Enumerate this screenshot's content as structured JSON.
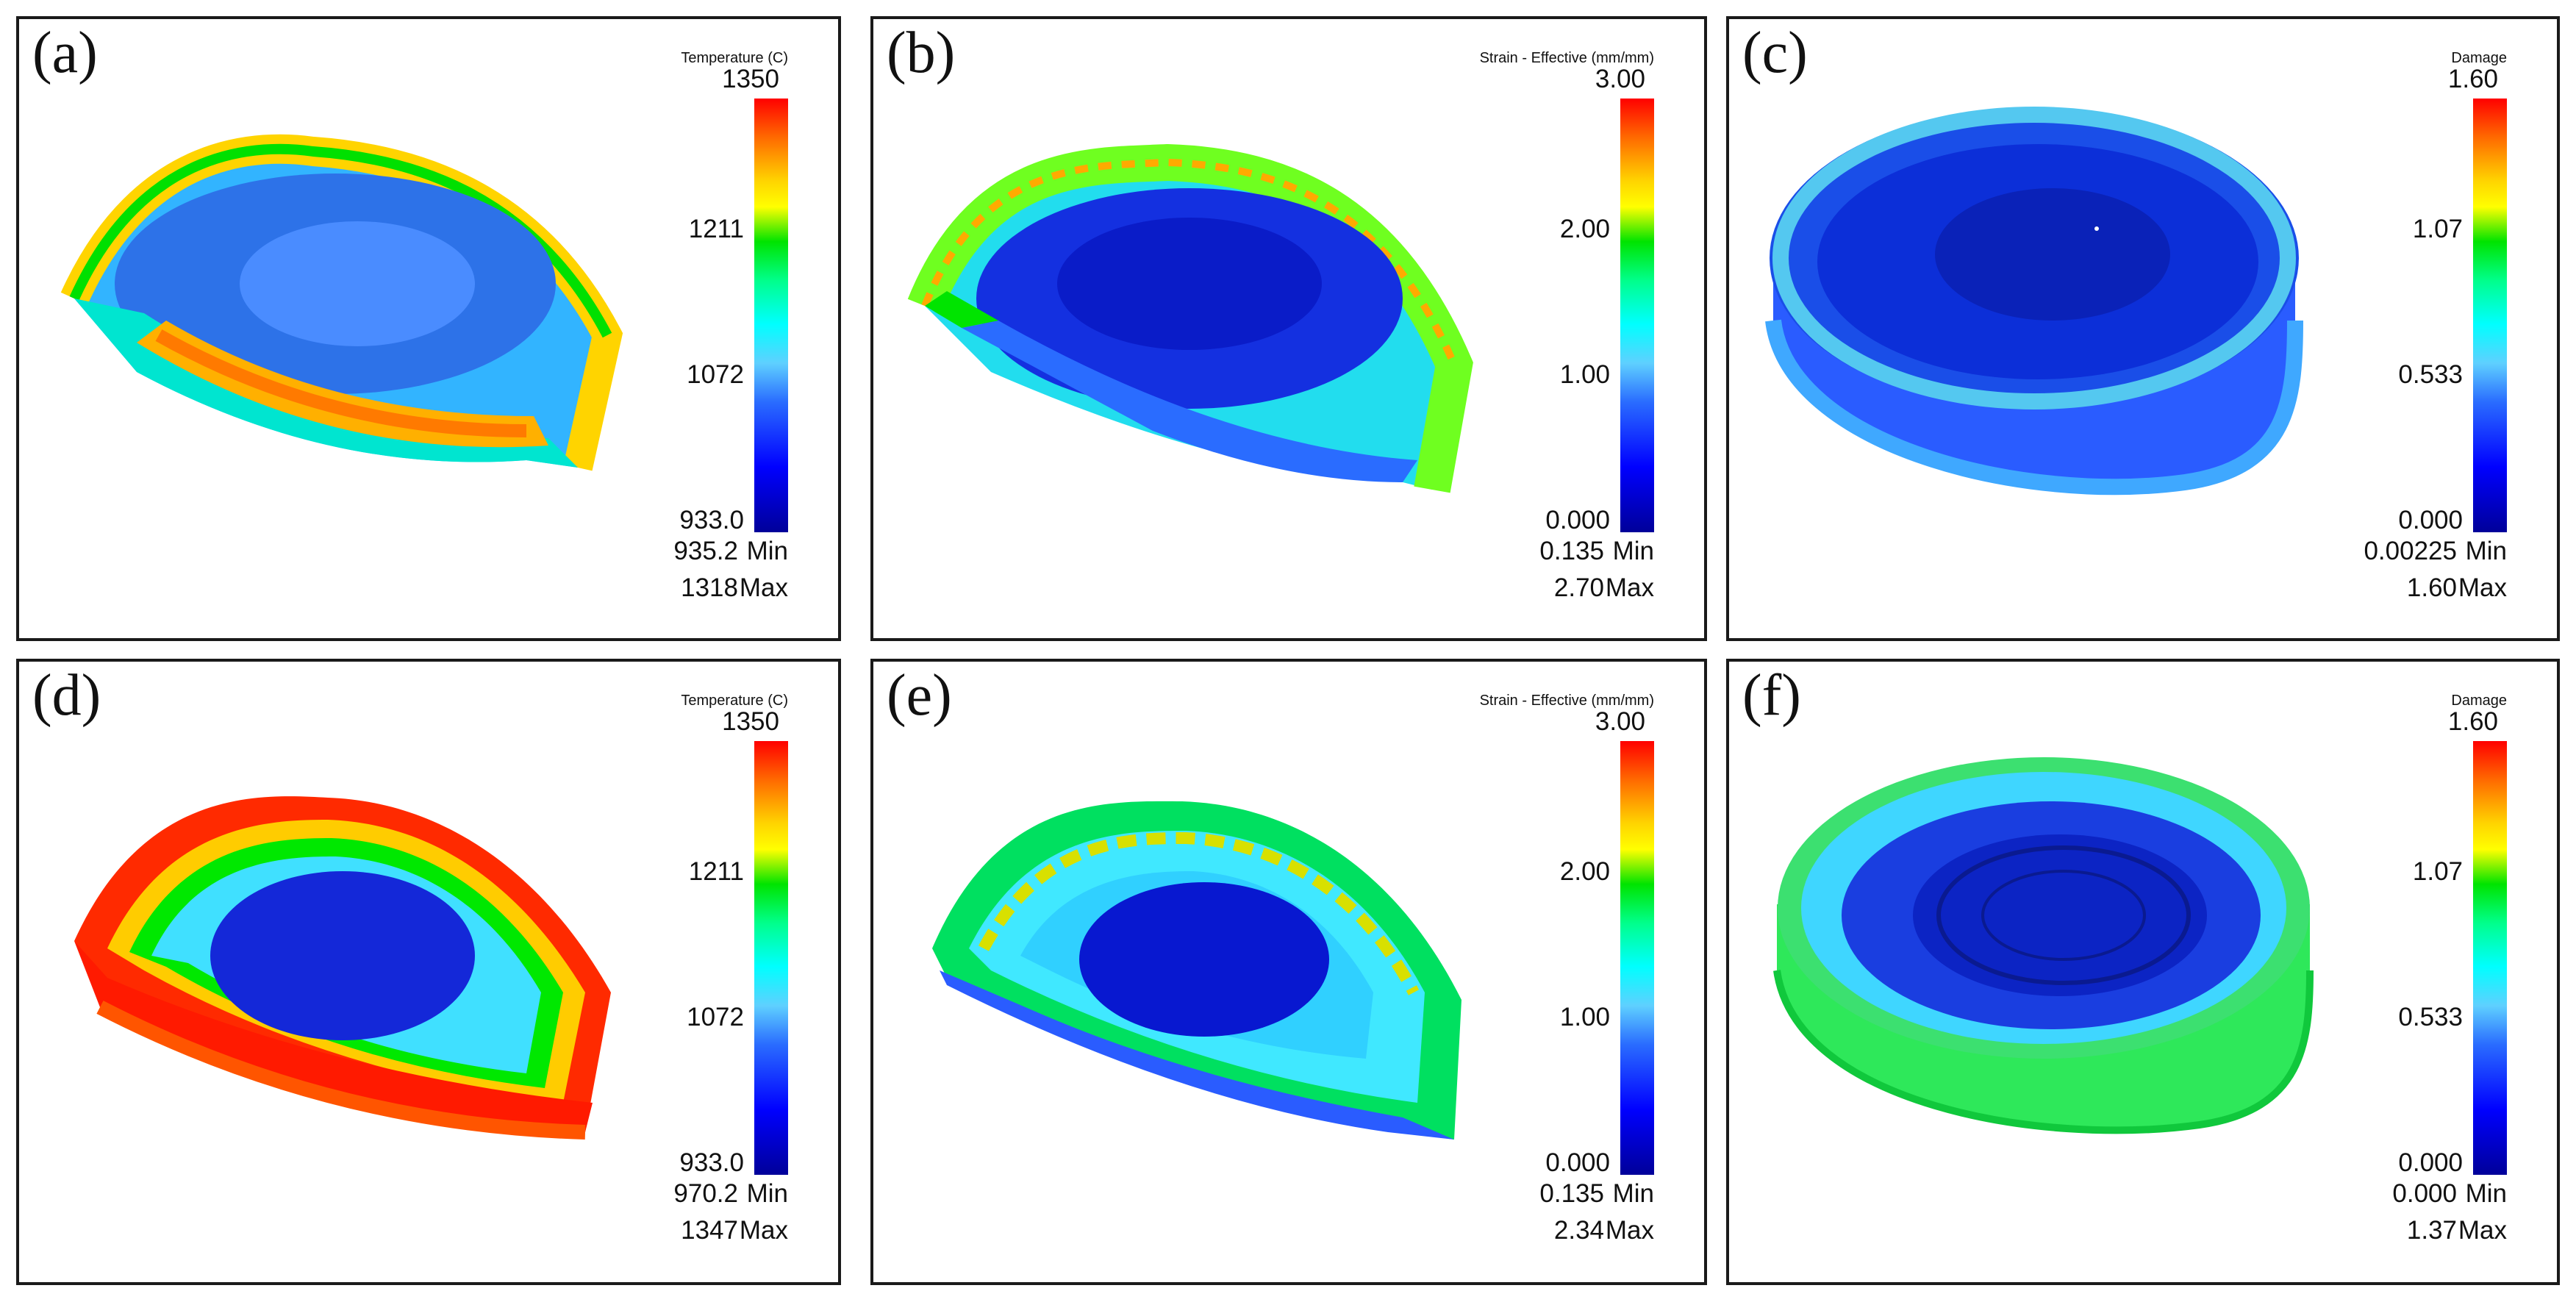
{
  "colors": {
    "frame": "#1a1a1a",
    "colormap": [
      "#000099",
      "#0000ff",
      "#2a6cff",
      "#5fd0ff",
      "#00ffff",
      "#00ff8c",
      "#00e400",
      "#ffff00",
      "#ffd400",
      "#ff6a00",
      "#ff0000"
    ]
  },
  "panels": [
    {
      "label": "(a)",
      "scale_title": "Temperature (C)",
      "ticks": [
        "1350",
        "1211",
        "1072",
        "933.0"
      ],
      "min_value": "935.2",
      "max_value": "1318",
      "min_tag": "Min",
      "max_tag": "Max",
      "shape": "half-disk",
      "field": "temperature"
    },
    {
      "label": "(b)",
      "scale_title": "Strain - Effective (mm/mm)",
      "ticks": [
        "3.00",
        "2.00",
        "1.00",
        "0.000"
      ],
      "min_value": "0.135",
      "max_value": "2.70",
      "min_tag": "Min",
      "max_tag": "Max",
      "shape": "half-disk",
      "field": "strain"
    },
    {
      "label": "(c)",
      "scale_title": "Damage",
      "ticks": [
        "1.60",
        "1.07",
        "0.533",
        "0.000"
      ],
      "min_value": "0.00225",
      "max_value": "1.60",
      "min_tag": "Min",
      "max_tag": "Max",
      "shape": "full-disk",
      "field": "damage"
    },
    {
      "label": "(d)",
      "scale_title": "Temperature (C)",
      "ticks": [
        "1350",
        "1211",
        "1072",
        "933.0"
      ],
      "min_value": "970.2",
      "max_value": "1347",
      "min_tag": "Min",
      "max_tag": "Max",
      "shape": "half-disk",
      "field": "temperature"
    },
    {
      "label": "(e)",
      "scale_title": "Strain - Effective (mm/mm)",
      "ticks": [
        "3.00",
        "2.00",
        "1.00",
        "0.000"
      ],
      "min_value": "0.135",
      "max_value": "2.34",
      "min_tag": "Min",
      "max_tag": "Max",
      "shape": "half-disk",
      "field": "strain"
    },
    {
      "label": "(f)",
      "scale_title": "Damage",
      "ticks": [
        "1.60",
        "1.07",
        "0.533",
        "0.000"
      ],
      "min_value": "0.000",
      "max_value": "1.37",
      "min_tag": "Min",
      "max_tag": "Max",
      "shape": "full-disk",
      "field": "damage"
    }
  ]
}
